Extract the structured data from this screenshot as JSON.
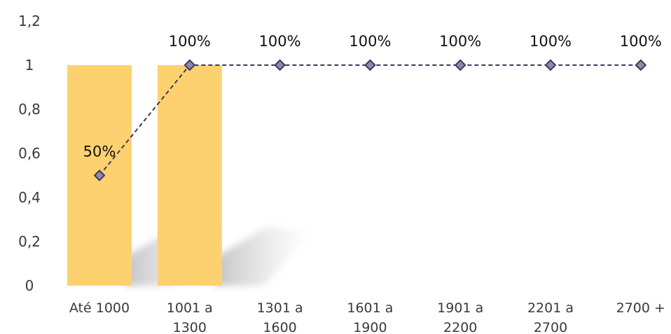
{
  "chart_data": {
    "type": "bar+line",
    "title": "",
    "xlabel": "",
    "ylabel": "",
    "ylim": [
      0,
      1.2
    ],
    "ytick_step": 0.2,
    "yticks": [
      "0",
      "0,2",
      "0,4",
      "0,6",
      "0,8",
      "1",
      "1,2"
    ],
    "grid": false,
    "legend": "none",
    "categories": [
      "Até 1000",
      "1001 a 1300",
      "1301 a 1600",
      "1601 a 1900",
      "1901 a 2200",
      "2201 a 2700",
      "2700 +"
    ],
    "category_lines": [
      [
        "Até 1000"
      ],
      [
        "1001 a",
        "1300"
      ],
      [
        "1301 a",
        "1600"
      ],
      [
        "1601 a",
        "1900"
      ],
      [
        "1901 a",
        "2200"
      ],
      [
        "2201 a",
        "2700"
      ],
      [
        "2700 +"
      ]
    ],
    "series": [
      {
        "type": "bar",
        "values": [
          1,
          1,
          null,
          null,
          null,
          null,
          null
        ],
        "color": "#fdd16f"
      },
      {
        "type": "line",
        "values": [
          0.5,
          1,
          1,
          1,
          1,
          1,
          1
        ],
        "data_labels": [
          "50%",
          "100%",
          "100%",
          "100%",
          "100%",
          "100%",
          "100%"
        ],
        "line_color": "#3d3a5e",
        "line_style": "dashed",
        "marker": "diamond",
        "marker_fill": "#8c8aa6"
      }
    ]
  }
}
